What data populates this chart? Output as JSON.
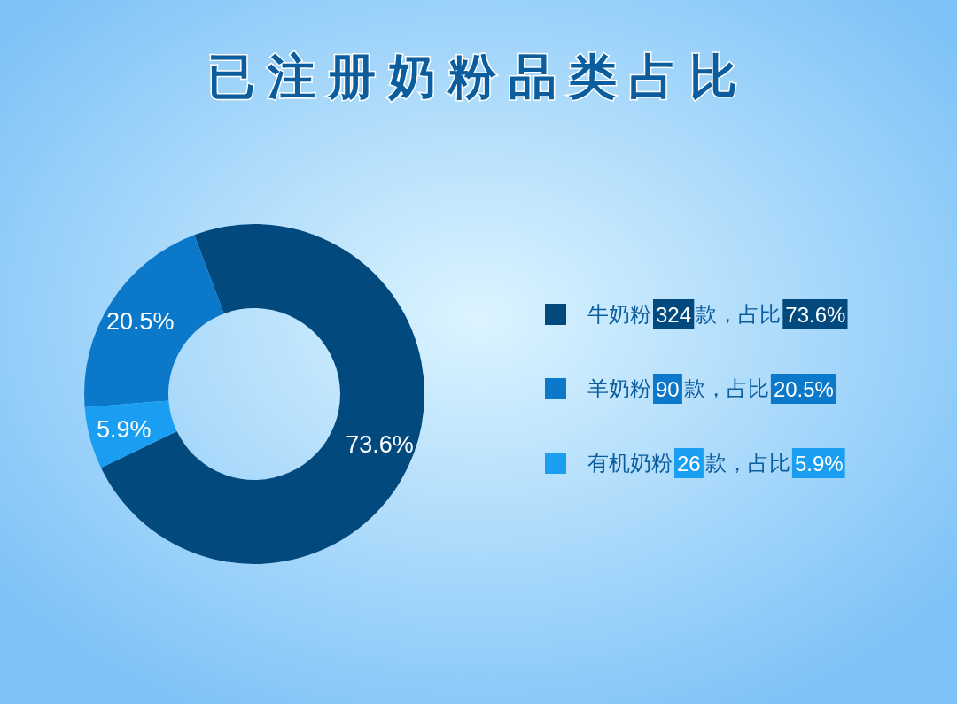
{
  "chart_data": {
    "type": "donut",
    "title": "已注册奶粉品类占比",
    "categories": [
      "牛奶粉 324 款，占比 73.6%",
      "羊奶粉 90 款，占比 20.5%",
      "有机奶粉 26 款，占比 5.9%"
    ],
    "values": [
      73.6,
      20.5,
      5.9
    ],
    "value_labels": [
      "73.6%",
      "20.5%",
      "5.9%"
    ],
    "colors": [
      "#02497e",
      "#0b78c9",
      "#1a9ef2"
    ],
    "legend": "right"
  }
}
